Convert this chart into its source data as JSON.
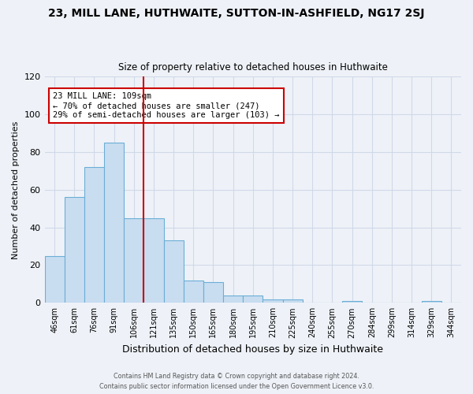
{
  "title": "23, MILL LANE, HUTHWAITE, SUTTON-IN-ASHFIELD, NG17 2SJ",
  "subtitle": "Size of property relative to detached houses in Huthwaite",
  "xlabel": "Distribution of detached houses by size in Huthwaite",
  "ylabel": "Number of detached properties",
  "bar_color": "#c9ddf0",
  "bar_edge_color": "#6baed6",
  "categories": [
    "46sqm",
    "61sqm",
    "76sqm",
    "91sqm",
    "106sqm",
    "121sqm",
    "135sqm",
    "150sqm",
    "165sqm",
    "180sqm",
    "195sqm",
    "210sqm",
    "225sqm",
    "240sqm",
    "255sqm",
    "270sqm",
    "284sqm",
    "299sqm",
    "314sqm",
    "329sqm",
    "344sqm"
  ],
  "values": [
    25,
    56,
    72,
    85,
    45,
    45,
    33,
    12,
    11,
    4,
    4,
    2,
    2,
    0,
    0,
    1,
    0,
    0,
    0,
    1,
    0
  ],
  "vline_x_index": 4,
  "vline_color": "#cc0000",
  "annotation_text": "23 MILL LANE: 109sqm\n← 70% of detached houses are smaller (247)\n29% of semi-detached houses are larger (103) →",
  "annotation_box_color": "#ffffff",
  "annotation_box_edge_color": "#cc0000",
  "ylim": [
    0,
    120
  ],
  "yticks": [
    0,
    20,
    40,
    60,
    80,
    100,
    120
  ],
  "footer1": "Contains HM Land Registry data © Crown copyright and database right 2024.",
  "footer2": "Contains public sector information licensed under the Open Government Licence v3.0.",
  "grid_color": "#d0d8e8",
  "background_color": "#eef2f8"
}
